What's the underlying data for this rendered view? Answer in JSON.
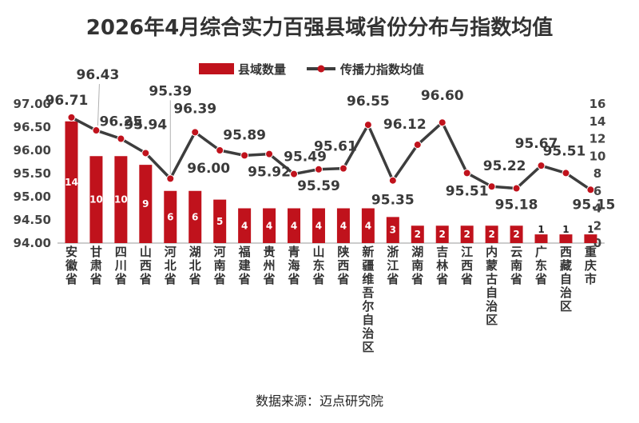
{
  "title": "2026年4月综合实力百强县域省份分布与指数均值",
  "source": "数据来源：迈点研究院",
  "colors": {
    "bar": "#c0121c",
    "line": "#3d3d3d",
    "marker": "#c0121c"
  },
  "chart_data": {
    "type": "bar+line",
    "title": "2026年4月综合实力百强县域省份分布与指数均值",
    "categories": [
      "安徽省",
      "甘肃省",
      "四川省",
      "山西省",
      "河北省",
      "湖北省",
      "河南省",
      "福建省",
      "贵州省",
      "青海省",
      "山东省",
      "陕西省",
      "新疆维吾尔自治区",
      "浙江省",
      "湖南省",
      "吉林省",
      "江西省",
      "内蒙古自治区",
      "云南省",
      "广东省",
      "西藏自治区",
      "重庆市"
    ],
    "series": [
      {
        "name": "县域数量",
        "type": "bar",
        "axis": "right",
        "values": [
          14,
          10,
          10,
          9,
          6,
          6,
          5,
          4,
          4,
          4,
          4,
          4,
          4,
          3,
          2,
          2,
          2,
          2,
          2,
          1,
          1,
          1
        ]
      },
      {
        "name": "传播力指数均值",
        "type": "line",
        "axis": "left",
        "values": [
          96.71,
          96.43,
          96.25,
          95.94,
          95.39,
          96.39,
          96.0,
          95.89,
          95.92,
          95.49,
          95.59,
          95.61,
          96.55,
          95.35,
          96.12,
          96.6,
          95.51,
          95.22,
          95.18,
          95.67,
          95.51,
          95.15
        ]
      }
    ],
    "y_left": {
      "min": 94.0,
      "max": 97.0,
      "ticks": [
        "94.00",
        "94.50",
        "95.00",
        "95.50",
        "96.00",
        "96.50",
        "97.00"
      ]
    },
    "y_right": {
      "min": 0,
      "max": 16,
      "ticks": [
        "0",
        "2",
        "4",
        "6",
        "8",
        "10",
        "12",
        "14",
        "16"
      ]
    },
    "legend": {
      "position": "top-center"
    },
    "grid": false
  }
}
